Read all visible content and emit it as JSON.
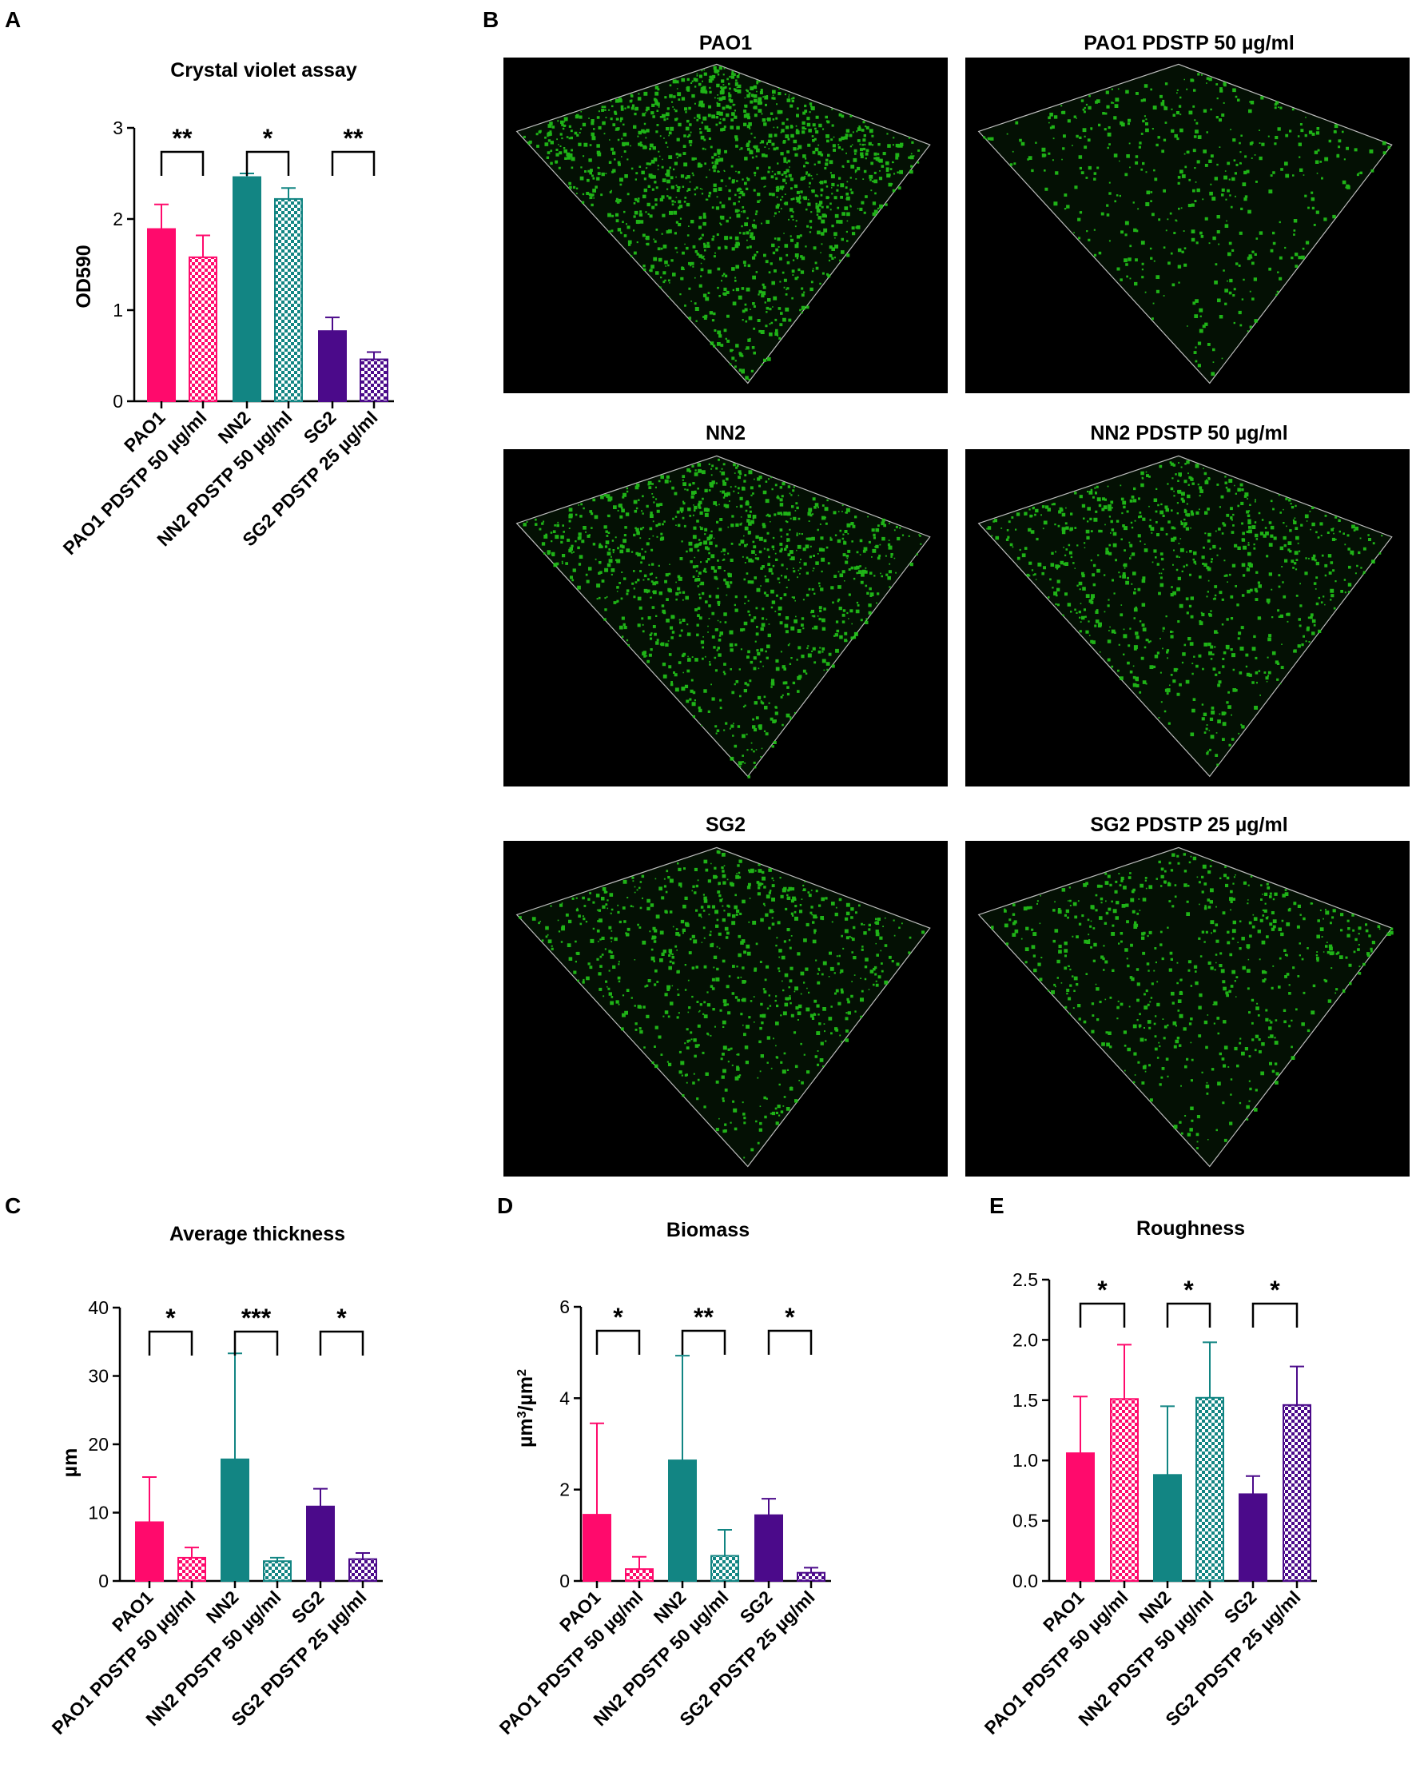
{
  "panel_letters": {
    "a": "A",
    "b": "B",
    "c": "C",
    "d": "D",
    "e": "E"
  },
  "colors": {
    "pink": "#ff0a6c",
    "teal": "#128583",
    "purple": "#4b0a8a",
    "image_bg": "#000000",
    "biofilm_green": "#22c51a"
  },
  "categories": [
    "PAO1",
    "PAO1 PDSTP 50 µg/ml",
    "NN2",
    "NN2 PDSTP 50 µg/ml",
    "SG2",
    "SG2 PDSTP 25 µg/ml"
  ],
  "bar_styles": [
    "solid",
    "checkered",
    "solid",
    "checkered",
    "solid",
    "checkered"
  ],
  "bar_colors": [
    "pink",
    "pink",
    "teal",
    "teal",
    "purple",
    "purple"
  ],
  "images": {
    "titles": [
      "PAO1",
      "PAO1 PDSTP 50 µg/ml",
      "NN2",
      "NN2 PDSTP 50 µg/ml",
      "SG2",
      "SG2 PDSTP 25 µg/ml"
    ],
    "densities": [
      1.0,
      0.35,
      0.8,
      0.6,
      0.55,
      0.45
    ]
  },
  "chart_data": [
    {
      "panel": "A",
      "type": "bar",
      "title": "Crystal violet assay",
      "ylabel": "OD590",
      "categories": [
        "PAO1",
        "PAO1 PDSTP 50 µg/ml",
        "NN2",
        "NN2 PDSTP 50 µg/ml",
        "SG2",
        "SG2 PDSTP 25 µg/ml"
      ],
      "values": [
        1.89,
        1.58,
        2.46,
        2.22,
        0.77,
        0.46
      ],
      "errors": [
        0.27,
        0.24,
        0.04,
        0.12,
        0.15,
        0.08
      ],
      "ylim": [
        0,
        3
      ],
      "yticks": [
        "0",
        "1",
        "2",
        "3"
      ],
      "significance": [
        {
          "pair": [
            0,
            1
          ],
          "label": "**"
        },
        {
          "pair": [
            2,
            3
          ],
          "label": "*"
        },
        {
          "pair": [
            4,
            5
          ],
          "label": "**"
        }
      ]
    },
    {
      "panel": "C",
      "type": "bar",
      "title": "Average thickness",
      "ylabel": "µm",
      "categories": [
        "PAO1",
        "PAO1 PDSTP 50 µg/ml",
        "NN2",
        "NN2 PDSTP 50 µg/ml",
        "SG2",
        "SG2 PDSTP 25 µg/ml"
      ],
      "values": [
        8.6,
        3.4,
        17.8,
        2.9,
        10.9,
        3.2
      ],
      "errors": [
        6.6,
        1.5,
        15.5,
        0.5,
        2.6,
        0.9
      ],
      "ylim": [
        0,
        40
      ],
      "yticks": [
        "0",
        "10",
        "20",
        "30",
        "40"
      ],
      "significance": [
        {
          "pair": [
            0,
            1
          ],
          "label": "*"
        },
        {
          "pair": [
            2,
            3
          ],
          "label": "***"
        },
        {
          "pair": [
            4,
            5
          ],
          "label": "*"
        }
      ]
    },
    {
      "panel": "D",
      "type": "bar",
      "title": "Biomass",
      "ylabel": "µm³/µm²",
      "categories": [
        "PAO1",
        "PAO1 PDSTP 50 µg/ml",
        "NN2",
        "NN2 PDSTP 50 µg/ml",
        "SG2",
        "SG2 PDSTP 25 µg/ml"
      ],
      "values": [
        1.45,
        0.26,
        2.64,
        0.55,
        1.44,
        0.18
      ],
      "errors": [
        2.0,
        0.27,
        2.29,
        0.57,
        0.36,
        0.11
      ],
      "ylim": [
        0,
        6
      ],
      "yticks": [
        "0",
        "2",
        "4",
        "6"
      ],
      "significance": [
        {
          "pair": [
            0,
            1
          ],
          "label": "*"
        },
        {
          "pair": [
            2,
            3
          ],
          "label": "**"
        },
        {
          "pair": [
            4,
            5
          ],
          "label": "*"
        }
      ]
    },
    {
      "panel": "E",
      "type": "bar",
      "title": "Roughness",
      "ylabel": "",
      "categories": [
        "PAO1",
        "PAO1 PDSTP 50 µg/ml",
        "NN2",
        "NN2 PDSTP 50 µg/ml",
        "SG2",
        "SG2 PDSTP 25 µg/ml"
      ],
      "values": [
        1.06,
        1.51,
        0.88,
        1.52,
        0.72,
        1.46
      ],
      "errors": [
        0.47,
        0.45,
        0.57,
        0.46,
        0.15,
        0.32
      ],
      "ylim": [
        0,
        2.5
      ],
      "yticks": [
        "0.0",
        "0.5",
        "1.0",
        "1.5",
        "2.0",
        "2.5"
      ],
      "significance": [
        {
          "pair": [
            0,
            1
          ],
          "label": "*"
        },
        {
          "pair": [
            2,
            3
          ],
          "label": "*"
        },
        {
          "pair": [
            4,
            5
          ],
          "label": "*"
        }
      ]
    }
  ]
}
